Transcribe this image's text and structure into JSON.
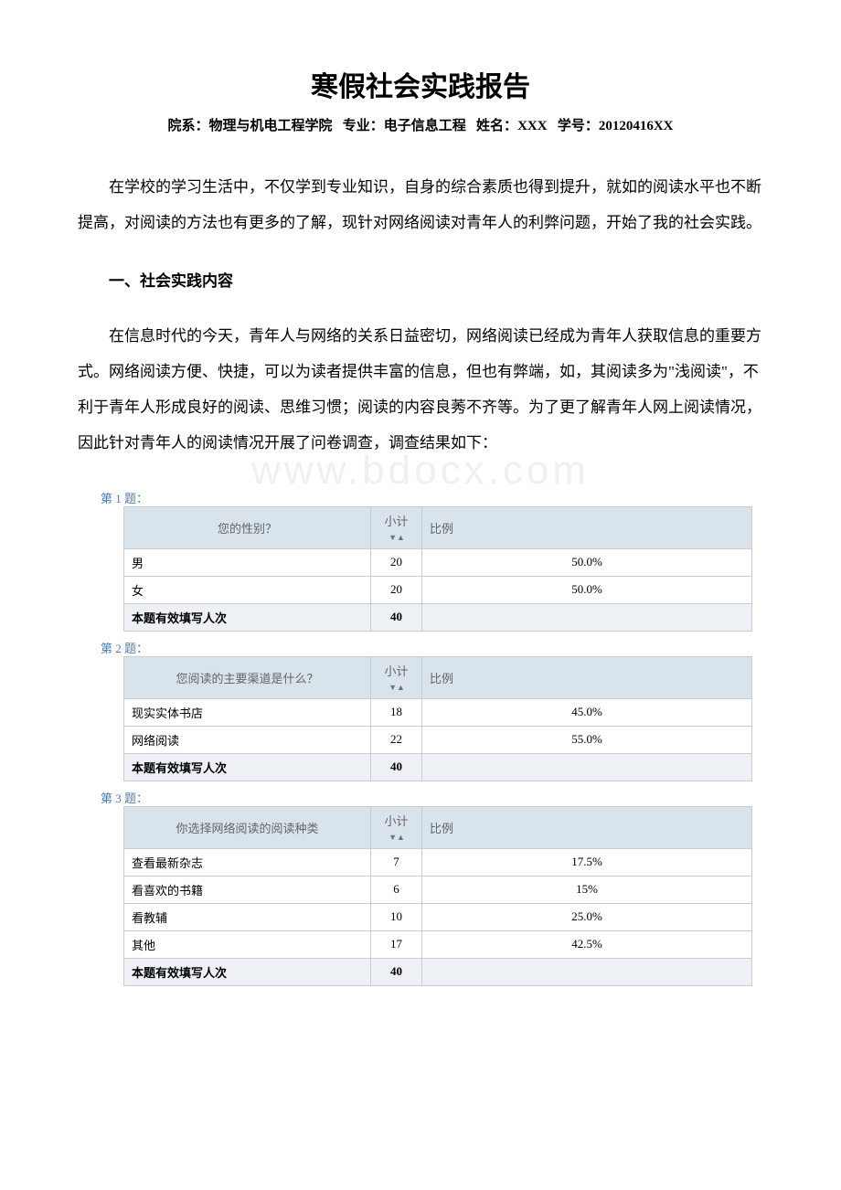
{
  "watermark": "www.bdocx.com",
  "title": "寒假社会实践报告",
  "meta": {
    "dept_label": "院系：",
    "dept_value": "物理与机电工程学院",
    "major_label": "专业：",
    "major_value": "电子信息工程",
    "name_label": "姓名：",
    "name_value": "XXX",
    "id_label": "学号：",
    "id_value": "20120416XX"
  },
  "intro_text": "在学校的学习生活中，不仅学到专业知识，自身的综合素质也得到提升，就如的阅读水平也不断提高，对阅读的方法也有更多的了解，现针对网络阅读对青年人的利弊问题，开始了我的社会实践。",
  "section1_heading": "一、社会实践内容",
  "section1_text": "在信息时代的今天，青年人与网络的关系日益密切，网络阅读已经成为青年人获取信息的重要方式。网络阅读方便、快捷，可以为读者提供丰富的信息，但也有弊端，如，其阅读多为\"浅阅读\"，不利于青年人形成良好的阅读、思维习惯；阅读的内容良莠不齐等。为了更了解青年人网上阅读情况，因此针对青年人的阅读情况开展了问卷调查，调查结果如下：",
  "table_headers": {
    "count": "小计",
    "ratio": "比例"
  },
  "total_label": "本题有效填写人次",
  "questions": [
    {
      "label": "第 1 题：",
      "question": "您的性别？",
      "rows": [
        {
          "option": "男",
          "count": "20",
          "ratio": "50.0%"
        },
        {
          "option": "女",
          "count": "20",
          "ratio": "50.0%"
        }
      ],
      "total": "40"
    },
    {
      "label": "第 2 题：",
      "question": "您阅读的主要渠道是什么？",
      "rows": [
        {
          "option": "现实实体书店",
          "count": "18",
          "ratio": "45.0%"
        },
        {
          "option": "网络阅读",
          "count": "22",
          "ratio": "55.0%"
        }
      ],
      "total": "40"
    },
    {
      "label": "第 3 题：",
      "question": "你选择网络阅读的阅读种类",
      "rows": [
        {
          "option": "查看最新杂志",
          "count": "7",
          "ratio": "17.5%"
        },
        {
          "option": "看喜欢的书籍",
          "count": "6",
          "ratio": "15%"
        },
        {
          "option": "看教辅",
          "count": "10",
          "ratio": "25.0%"
        },
        {
          "option": "其他",
          "count": "17",
          "ratio": "42.5%"
        }
      ],
      "total": "40"
    }
  ],
  "colors": {
    "question_label": "#4a7db8",
    "header_bg": "#d9e3ec",
    "total_bg": "#edf1f5",
    "border": "#cccccc",
    "header_text": "#666666"
  }
}
